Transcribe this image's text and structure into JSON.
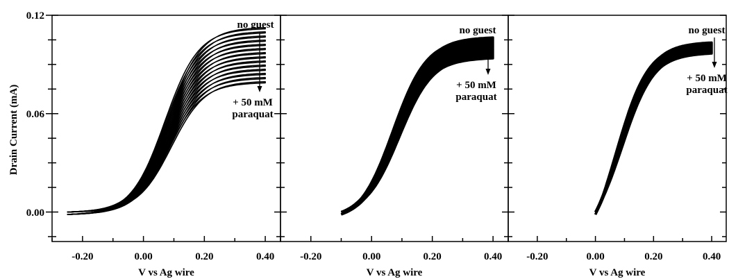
{
  "chart_data": {
    "type": "line",
    "ylabel": "Drain Current (mA)",
    "ylim": [
      -0.018,
      0.12
    ],
    "y_ticks": [
      "0.00",
      "0.06",
      "0.12"
    ],
    "y_tick_values": [
      0.0,
      0.06,
      0.12
    ],
    "grid": false,
    "panels": [
      {
        "xlabel": "V vs Ag wire",
        "xlim": [
          -0.3,
          0.45
        ],
        "x_ticks": [
          "-0.20",
          "0.00",
          "0.20",
          "0.40"
        ],
        "x_tick_values": [
          -0.2,
          0.0,
          0.2,
          0.4
        ],
        "sweep": {
          "x_start": -0.25,
          "x_end": 0.4,
          "curves": 14,
          "top_plateau": 0.112,
          "bottom_plateau": 0.079
        },
        "annotations": {
          "top": "no guest",
          "bottom_line1": "+ 50 mM",
          "bottom_line2": "paraquat"
        }
      },
      {
        "xlabel": "V vs Ag wire",
        "xlim": [
          -0.3,
          0.45
        ],
        "x_ticks": [
          "-0.20",
          "0.00",
          "0.20",
          "0.40"
        ],
        "x_tick_values": [
          -0.2,
          0.0,
          0.2,
          0.4
        ],
        "sweep": {
          "x_start": -0.1,
          "x_end": 0.4,
          "curves": 12,
          "top_plateau": 0.106,
          "bottom_plateau": 0.094
        },
        "annotations": {
          "top": "no guest",
          "bottom_line1": "+ 50 mM",
          "bottom_line2": "paraquat"
        }
      },
      {
        "xlabel": "V vs Ag wire",
        "xlim": [
          -0.3,
          0.45
        ],
        "x_ticks": [
          "-0.20",
          "0.00",
          "0.20",
          "0.40"
        ],
        "x_tick_values": [
          -0.2,
          0.0,
          0.2,
          0.4
        ],
        "sweep": {
          "x_start": 0.0,
          "x_end": 0.4,
          "curves": 8,
          "top_plateau": 0.103,
          "bottom_plateau": 0.097
        },
        "annotations": {
          "top": "no guest",
          "bottom_line1": "+ 50 mM",
          "bottom_line2": "paraquat"
        }
      }
    ]
  }
}
